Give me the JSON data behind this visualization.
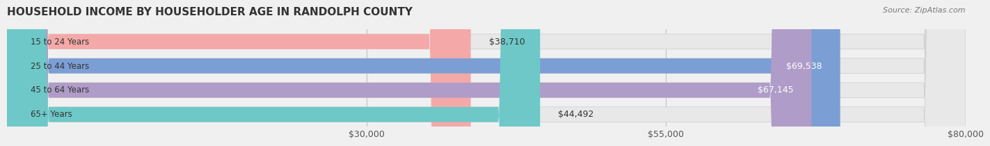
{
  "title": "HOUSEHOLD INCOME BY HOUSEHOLDER AGE IN RANDOLPH COUNTY",
  "source": "Source: ZipAtlas.com",
  "categories": [
    "15 to 24 Years",
    "25 to 44 Years",
    "45 to 64 Years",
    "65+ Years"
  ],
  "values": [
    38710,
    69538,
    67145,
    44492
  ],
  "bar_colors": [
    "#f4a9a8",
    "#7b9fd4",
    "#b09cc8",
    "#6ec8c8"
  ],
  "label_colors": [
    "#555555",
    "#ffffff",
    "#ffffff",
    "#555555"
  ],
  "x_min": 0,
  "x_max": 80000,
  "x_ticks": [
    30000,
    55000,
    80000
  ],
  "x_tick_labels": [
    "$30,000",
    "$55,000",
    "$80,000"
  ],
  "background_color": "#f0f0f0",
  "bar_background": "#e8e8e8",
  "title_fontsize": 11,
  "source_fontsize": 8,
  "tick_fontsize": 9,
  "bar_label_fontsize": 9,
  "category_fontsize": 8.5,
  "bar_height": 0.62,
  "figsize": [
    14.06,
    2.33
  ]
}
